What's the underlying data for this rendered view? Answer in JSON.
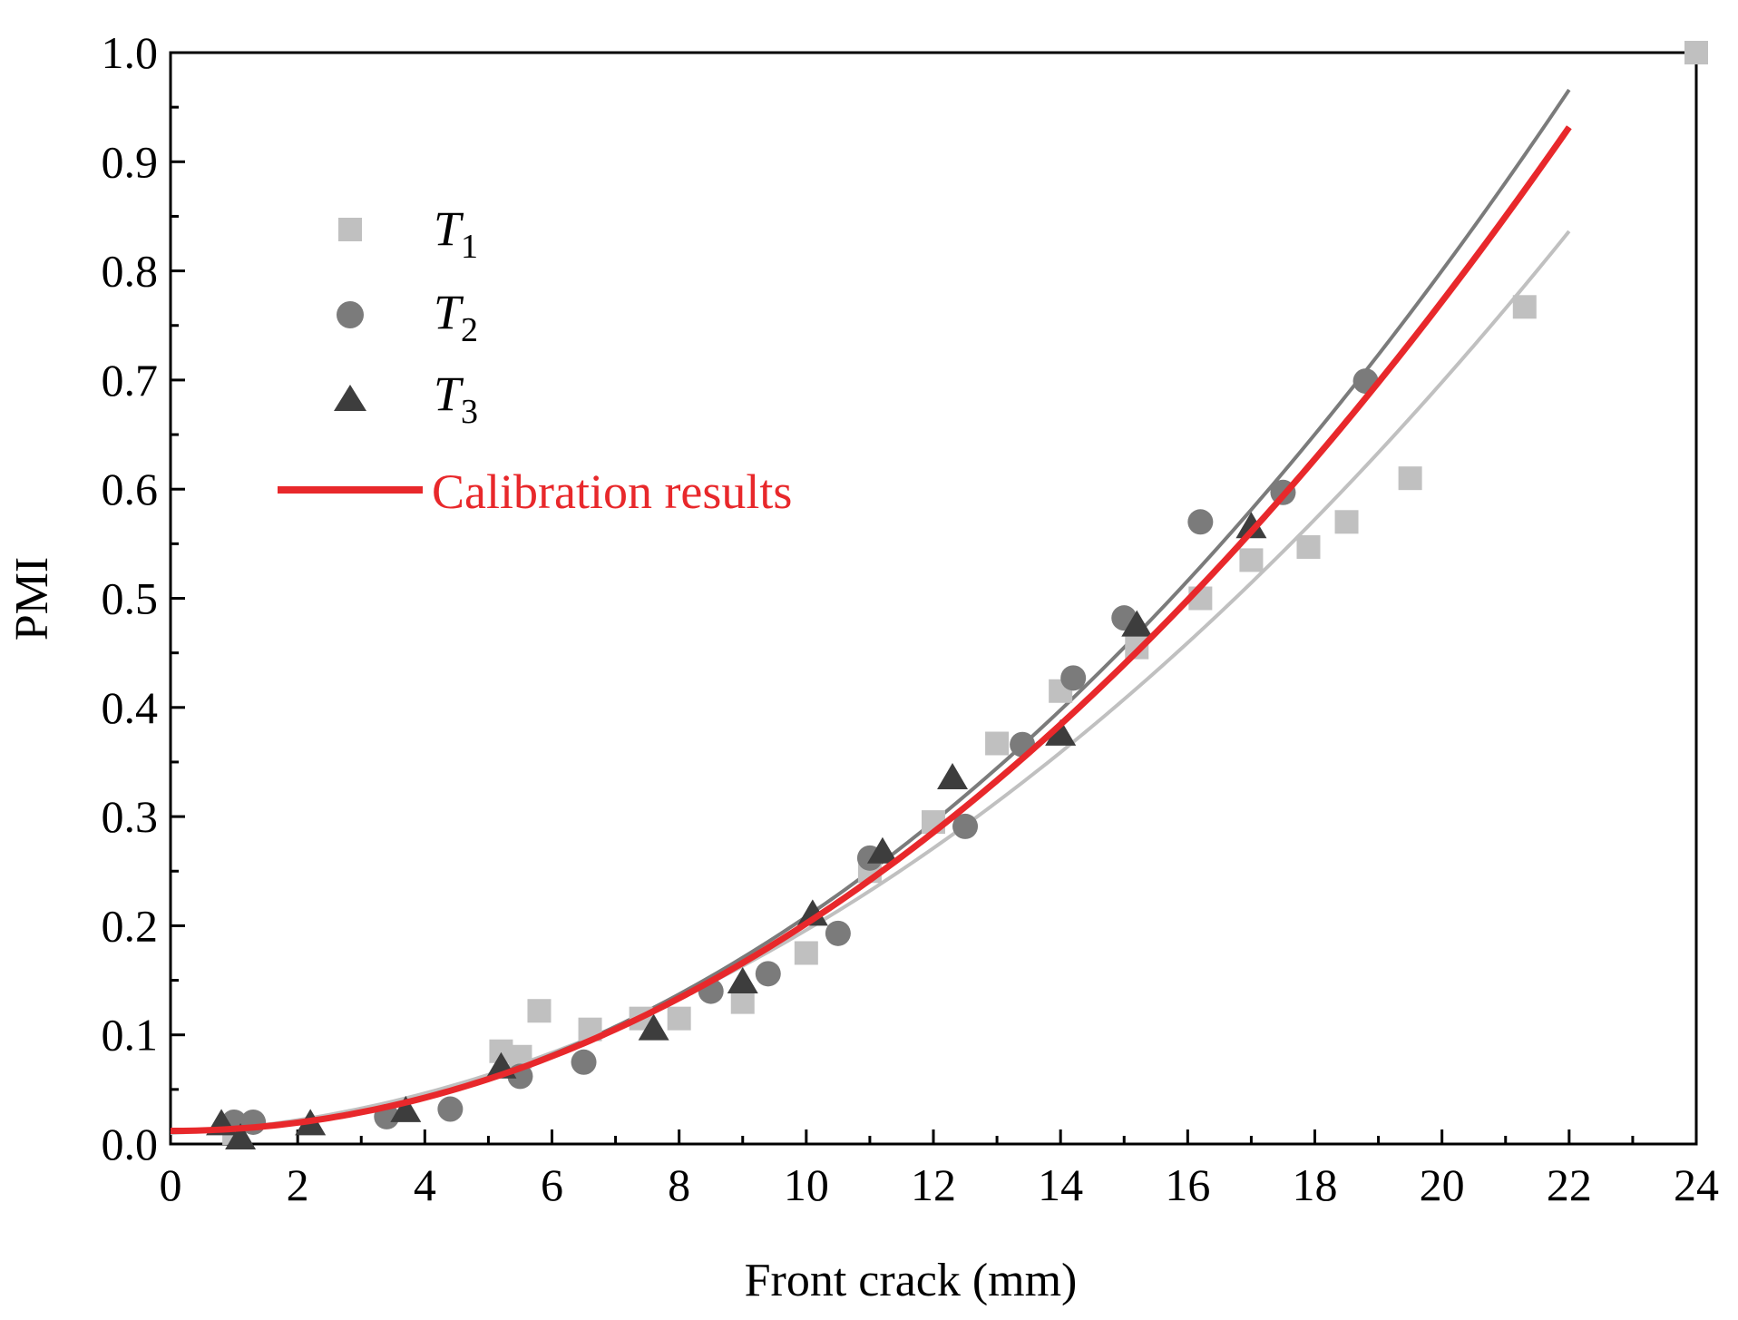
{
  "chart_data": {
    "type": "scatter",
    "title": "",
    "xlabel": "Front crack (mm)",
    "ylabel": "PMI",
    "xlim": [
      0,
      24
    ],
    "ylim": [
      0.0,
      1.0
    ],
    "x_ticks": [
      "0",
      "2",
      "4",
      "6",
      "8",
      "10",
      "12",
      "14",
      "16",
      "18",
      "20",
      "22",
      "24"
    ],
    "y_ticks": [
      "0.0",
      "0.1",
      "0.2",
      "0.3",
      "0.4",
      "0.5",
      "0.6",
      "0.7",
      "0.8",
      "0.9",
      "1.0"
    ],
    "legend_position": "top-left",
    "colors": {
      "t1": "#c0c0c0",
      "t2": "#7b7b7b",
      "t3": "#3d3d3d",
      "calibration": "#e8282b"
    },
    "series": [
      {
        "name": "T",
        "subscript": "1",
        "marker": "square",
        "color": "#c0c0c0",
        "points": [
          [
            1.0,
            0.01
          ],
          [
            5.2,
            0.085
          ],
          [
            5.5,
            0.08
          ],
          [
            5.8,
            0.122
          ],
          [
            6.6,
            0.105
          ],
          [
            7.4,
            0.115
          ],
          [
            8.0,
            0.115
          ],
          [
            9.0,
            0.13
          ],
          [
            10.0,
            0.175
          ],
          [
            11.0,
            0.25
          ],
          [
            12.0,
            0.295
          ],
          [
            13.0,
            0.367
          ],
          [
            14.0,
            0.415
          ],
          [
            15.2,
            0.455
          ],
          [
            16.2,
            0.5
          ],
          [
            17.0,
            0.535
          ],
          [
            17.9,
            0.547
          ],
          [
            18.5,
            0.57
          ],
          [
            19.5,
            0.61
          ],
          [
            21.3,
            0.767
          ],
          [
            24.0,
            1.0
          ]
        ],
        "fit": [
          0.01,
          0.0028,
          0.00158
        ]
      },
      {
        "name": "T",
        "subscript": "2",
        "marker": "circle",
        "color": "#7b7b7b",
        "points": [
          [
            1.0,
            0.02
          ],
          [
            1.3,
            0.02
          ],
          [
            3.4,
            0.025
          ],
          [
            4.4,
            0.032
          ],
          [
            5.5,
            0.062
          ],
          [
            6.5,
            0.075
          ],
          [
            8.5,
            0.14
          ],
          [
            9.4,
            0.156
          ],
          [
            10.5,
            0.193
          ],
          [
            11.0,
            0.262
          ],
          [
            12.5,
            0.291
          ],
          [
            13.4,
            0.366
          ],
          [
            14.2,
            0.427
          ],
          [
            15.0,
            0.482
          ],
          [
            16.2,
            0.57
          ],
          [
            17.5,
            0.597
          ],
          [
            18.8,
            0.699
          ]
        ],
        "fit": [
          0.011,
          0.0,
          0.001973
        ]
      },
      {
        "name": "T",
        "subscript": "3",
        "marker": "triangle",
        "color": "#3d3d3d",
        "points": [
          [
            0.8,
            0.018
          ],
          [
            1.1,
            0.005
          ],
          [
            2.2,
            0.018
          ],
          [
            3.7,
            0.03
          ],
          [
            5.2,
            0.07
          ],
          [
            7.6,
            0.105
          ],
          [
            9.0,
            0.148
          ],
          [
            10.1,
            0.21
          ],
          [
            11.2,
            0.267
          ],
          [
            12.3,
            0.335
          ],
          [
            14.0,
            0.375
          ],
          [
            15.2,
            0.475
          ],
          [
            17.0,
            0.565
          ]
        ],
        "fit": [
          0.012,
          0.0,
          0.0019
        ]
      }
    ],
    "calibration": {
      "name": "Calibration results",
      "color": "#e8282b",
      "fit": [
        0.012,
        0.0,
        0.0019
      ],
      "x_range": [
        0,
        22
      ]
    }
  }
}
